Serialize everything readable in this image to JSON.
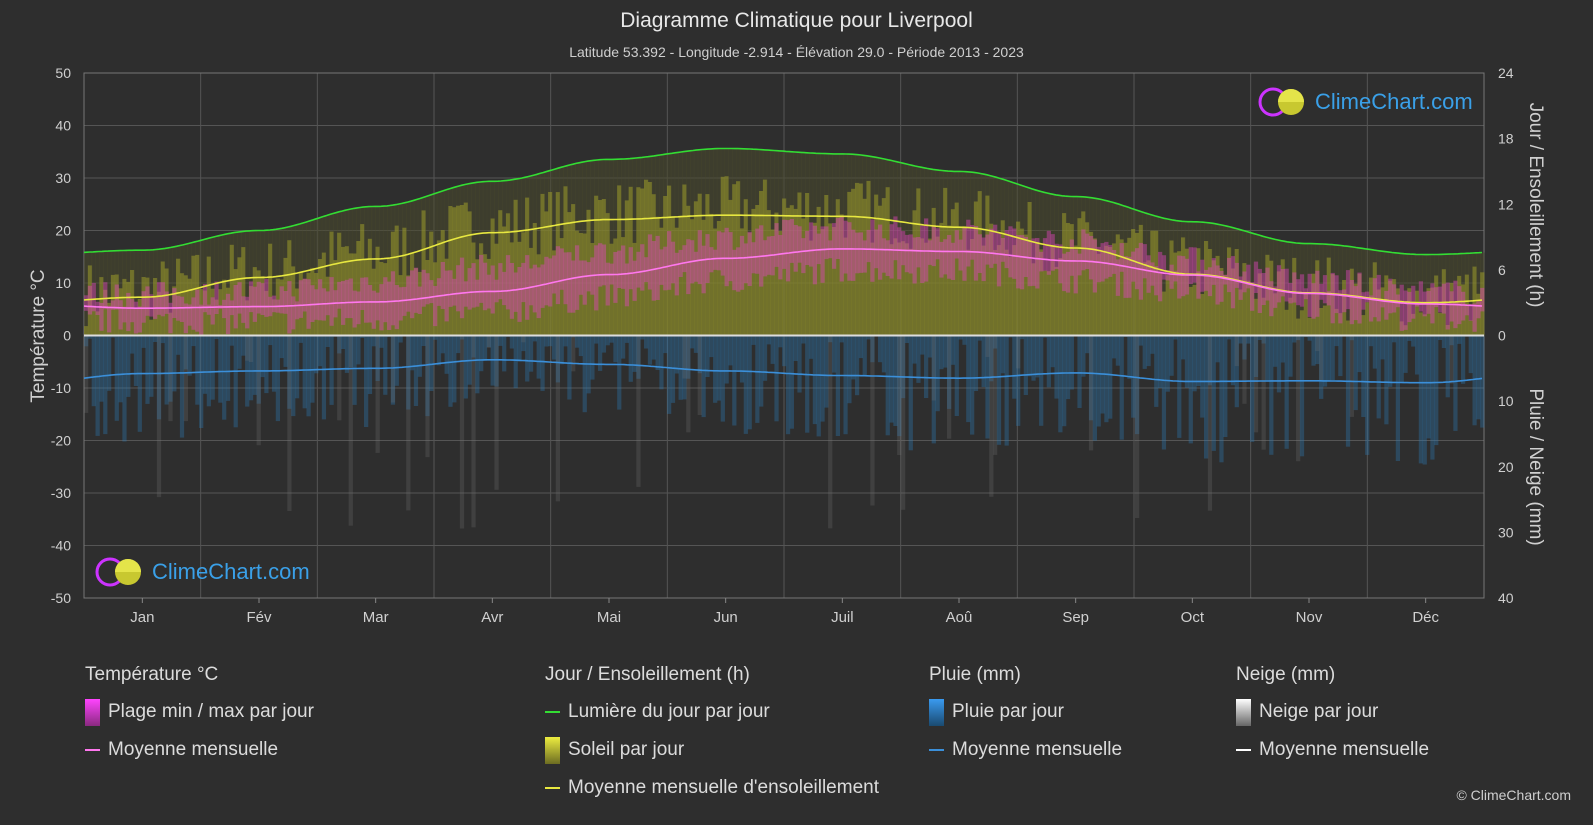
{
  "title": "Diagramme Climatique pour Liverpool",
  "subtitle": "Latitude 53.392 - Longitude -2.914 - Élévation 29.0 - Période 2013 - 2023",
  "brand": "ClimeChart.com",
  "copyright": "© ClimeChart.com",
  "legend": {
    "temp": {
      "title": "Température °C",
      "range": "Plage min / max par jour",
      "mean": "Moyenne mensuelle"
    },
    "sun": {
      "title": "Jour / Ensoleillement (h)",
      "daylight": "Lumière du jour par jour",
      "sunshine": "Soleil par jour",
      "sunmean": "Moyenne mensuelle d'ensoleillement"
    },
    "rain": {
      "title": "Pluie (mm)",
      "daily": "Pluie par jour",
      "mean": "Moyenne mensuelle"
    },
    "snow": {
      "title": "Neige (mm)",
      "daily": "Neige par jour",
      "mean": "Moyenne mensuelle"
    }
  },
  "colors": {
    "background": "#2e2e2e",
    "daylight": "#33dd33",
    "sunshine_mean": "#e8e840",
    "temp_mean": "#ff77ee",
    "temp_range": "#dd44bb",
    "sunshine_fill": "#9c9c2a",
    "rain": "#2a7ab8",
    "rain_mean": "#3b8fd9",
    "snow": "#aaaaaa",
    "snow_mean": "#ffffff"
  },
  "chart_data": {
    "type": "climate",
    "months": [
      "Jan",
      "Fév",
      "Mar",
      "Avr",
      "Mai",
      "Jun",
      "Juil",
      "Aoû",
      "Sep",
      "Oct",
      "Nov",
      "Déc"
    ],
    "left_axis": {
      "label": "Température °C",
      "min": -50,
      "max": 50,
      "ticks": [
        50,
        40,
        30,
        20,
        10,
        0,
        -10,
        -20,
        -30,
        -40,
        -50
      ]
    },
    "right_axis_top": {
      "label": "Jour / Ensoleillement (h)",
      "min": 0,
      "max": 24,
      "ticks": [
        24,
        18,
        12,
        6,
        0
      ]
    },
    "right_axis_bottom": {
      "label": "Pluie / Neige (mm)",
      "min": 0,
      "max": 40,
      "ticks": [
        0,
        10,
        20,
        30,
        40
      ]
    },
    "daylight_hours": [
      7.8,
      9.6,
      11.8,
      14.1,
      16.1,
      17.1,
      16.6,
      15.0,
      12.7,
      10.4,
      8.4,
      7.4
    ],
    "sunshine_hours": [
      3.5,
      5.3,
      7.0,
      9.4,
      10.6,
      11.0,
      10.9,
      9.9,
      8.0,
      5.6,
      3.9,
      3.0
    ],
    "temp_mean": [
      5.2,
      5.5,
      6.4,
      8.4,
      11.6,
      14.7,
      16.5,
      16.0,
      14.2,
      11.5,
      8.0,
      6.0
    ],
    "temp_max": [
      7.8,
      8.4,
      10.4,
      13.0,
      16.0,
      18.8,
      20.6,
      20.0,
      17.9,
      14.5,
      10.6,
      8.3
    ],
    "temp_min": [
      2.6,
      2.6,
      3.0,
      4.5,
      7.3,
      10.5,
      12.5,
      12.3,
      10.5,
      8.2,
      5.0,
      3.2
    ],
    "rain_mean_mm": [
      5.8,
      5.4,
      5.0,
      3.7,
      4.4,
      5.4,
      6.1,
      6.5,
      5.7,
      7.0,
      6.9,
      7.2
    ],
    "snow_mean_mm": [
      0,
      0,
      0,
      0,
      0,
      0,
      0,
      0,
      0,
      0,
      0,
      0
    ]
  }
}
